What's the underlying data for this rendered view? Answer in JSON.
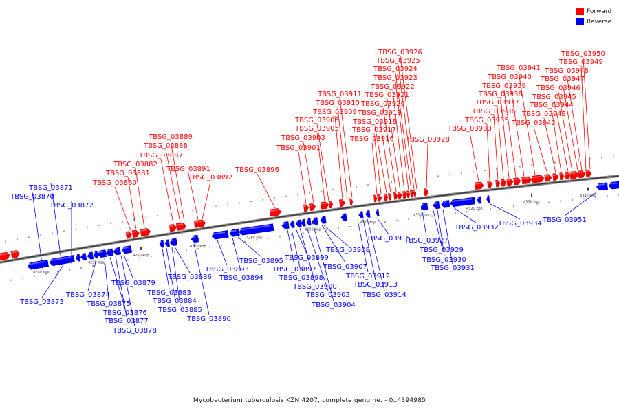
{
  "legend": {
    "forward": {
      "label": "Forward",
      "color": "#ff0000"
    },
    "reverse": {
      "label": "Reverse",
      "color": "#0000ff"
    }
  },
  "caption": "Mycobacterium tuberculosis KZN 4207, complete genome. - 0..4394985",
  "axis_ticks": [
    "4240 kbp",
    "4250 kbp",
    "4260 kbp",
    "4270 kbp",
    "4280 kbp",
    "4290 kbp",
    "4300 kbp",
    "4310 kbp",
    "4320 kbp",
    "4330 kbp",
    "4340 kbp"
  ],
  "forward_genes": [
    "TBSG_03880",
    "TBSG_03881",
    "TBSG_03882",
    "TBSG_03887",
    "TBSG_03888",
    "TBSG_03889",
    "TBSG_03891",
    "TBSG_03892",
    "TBSG_03896",
    "TBSG_03901",
    "TBSG_03903",
    "TBSG_03905",
    "TBSG_03906",
    "TBSG_03909",
    "TBSG_03910",
    "TBSG_03911",
    "TBSG_03916",
    "TBSG_03917",
    "TBSG_03918",
    "TBSG_03919",
    "TBSG_03920",
    "TBSG_03921",
    "TBSG_03922",
    "TBSG_03923",
    "TBSG_03924",
    "TBSG_03925",
    "TBSG_03926",
    "TBSG_03928",
    "TBSG_03933",
    "TBSG_03935",
    "TBSG_03936",
    "TBSG_03937",
    "TBSG_03938",
    "TBSG_03939",
    "TBSG_03940",
    "TBSG_03941",
    "TBSG_03942",
    "TBSG_03943",
    "TBSG_03944",
    "TBSG_03945",
    "TBSG_03946",
    "TBSG_03947",
    "TBSG_03948",
    "TBSG_03949",
    "TBSG_03950"
  ],
  "reverse_genes": [
    "TBSG_03870",
    "TBSG_03871",
    "TBSG_03872",
    "TBSG_03873",
    "TBSG_03874",
    "TBSG_03875",
    "TBSG_03876",
    "TBSG_03877",
    "TBSG_03878",
    "TBSG_03879",
    "TBSG_03883",
    "TBSG_03884",
    "TBSG_03885",
    "TBSG_03886",
    "TBSG_03890",
    "TBSG_03893",
    "TBSG_03894",
    "TBSG_03895",
    "TBSG_03897",
    "TBSG_03898",
    "TBSG_03899",
    "TBSG_03900",
    "TBSG_03902",
    "TBSG_03904",
    "TBSG_03907",
    "TBSG_03908",
    "TBSG_03912",
    "TBSG_03913",
    "TBSG_03914",
    "TBSG_03915",
    "TBSG_03927",
    "TBSG_03929",
    "TBSG_03930",
    "TBSG_03931",
    "TBSG_03932",
    "TBSG_03934",
    "TBSG_03951"
  ]
}
